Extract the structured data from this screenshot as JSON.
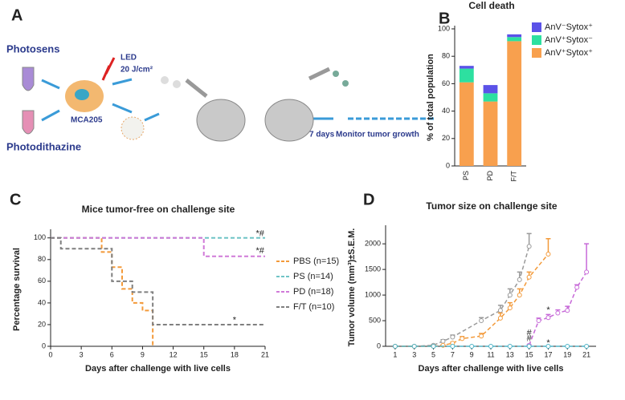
{
  "diagram": {
    "label": "A",
    "photosens": "Photosens",
    "photodithazine": "Photodithazine",
    "cell": "MCA205",
    "led": "LED",
    "dose": "20 J/cm²",
    "wait": "7 days",
    "monitor": "Monitor tumor growth"
  },
  "chart_data": [
    {
      "type": "bar",
      "label": "B",
      "title": "Cell death",
      "ylabel": "% of total population",
      "categories": [
        "PS",
        "PD",
        "F/T"
      ],
      "series": [
        {
          "name": "AnV⁺Sytox⁺",
          "color": "#f8a04e",
          "values": [
            61,
            47,
            91
          ]
        },
        {
          "name": "AnV⁺Sytox⁻",
          "color": "#2de0a0",
          "values": [
            10,
            6,
            3
          ]
        },
        {
          "name": "AnV⁻Sytox⁺",
          "color": "#5b52e8",
          "values": [
            2,
            6,
            2
          ]
        }
      ],
      "ylim": [
        0,
        100
      ],
      "yticks": [
        0,
        20,
        40,
        60,
        80,
        100
      ]
    },
    {
      "type": "step",
      "label": "C",
      "title": "Mice tumor-free on challenge site",
      "ylabel": "Percentage survival",
      "xlabel": "Days after challenge with live cells",
      "series": [
        {
          "name": "PBS (n=15)",
          "color": "#f39a3a",
          "x": [
            0,
            5,
            6,
            7,
            8,
            9,
            10
          ],
          "values": [
            100,
            87,
            73,
            53,
            40,
            33,
            0
          ]
        },
        {
          "name": "PS (n=14)",
          "color": "#6fc4c6",
          "x": [
            0,
            21
          ],
          "values": [
            100,
            100
          ]
        },
        {
          "name": "PD (n=18)",
          "color": "#d07ad8",
          "x": [
            0,
            15,
            21
          ],
          "values": [
            100,
            83,
            83
          ]
        },
        {
          "name": "F/T (n=10)",
          "color": "#7f7f7f",
          "x": [
            0,
            1,
            6,
            8,
            10,
            21
          ],
          "values": [
            100,
            90,
            60,
            50,
            20,
            20
          ]
        }
      ],
      "annotations": [
        {
          "text": "*#",
          "x": 20.5,
          "y": 104,
          "color": "#222"
        },
        {
          "text": "*#",
          "x": 20.5,
          "y": 88,
          "color": "#222"
        },
        {
          "text": "*",
          "x": 18,
          "y": 24,
          "color": "#222"
        }
      ],
      "xlim": [
        0,
        21
      ],
      "xticks": [
        0,
        3,
        6,
        9,
        12,
        15,
        18,
        21
      ],
      "ylim": [
        0,
        105
      ],
      "yticks": [
        0,
        20,
        40,
        60,
        80,
        100
      ]
    },
    {
      "type": "line",
      "label": "D",
      "title": "Tumor size on challenge site",
      "ylabel": "Tumor volume (mm³)±S.E.M.",
      "xlabel": "Days after challenge with live cells",
      "series": [
        {
          "color": "#9a9a9a",
          "x": [
            1,
            3,
            5,
            6,
            7,
            10,
            12,
            13,
            14,
            15
          ],
          "values": [
            0,
            0,
            20,
            100,
            180,
            500,
            700,
            1000,
            1300,
            1950
          ],
          "errors": [
            0,
            0,
            10,
            30,
            40,
            60,
            100,
            120,
            150,
            250
          ]
        },
        {
          "color": "#f39a3a",
          "x": [
            1,
            3,
            5,
            6,
            7,
            8,
            10,
            12,
            13,
            14,
            15,
            17
          ],
          "values": [
            0,
            0,
            0,
            20,
            60,
            150,
            200,
            550,
            750,
            1000,
            1350,
            1800
          ],
          "errors": [
            0,
            0,
            0,
            10,
            20,
            40,
            50,
            100,
            100,
            120,
            100,
            300
          ]
        },
        {
          "color": "#c76ad8",
          "x": [
            15,
            16,
            17,
            18,
            19,
            20,
            21
          ],
          "values": [
            20,
            500,
            560,
            650,
            700,
            1150,
            1450
          ],
          "errors": [
            10,
            50,
            60,
            60,
            80,
            50,
            550
          ]
        },
        {
          "color": "#4fb3c6",
          "x": [
            1,
            3,
            5,
            7,
            9,
            11,
            13,
            15,
            17,
            19,
            21
          ],
          "values": [
            0,
            0,
            0,
            0,
            0,
            0,
            0,
            0,
            0,
            0,
            0
          ],
          "errors": [
            0,
            0,
            0,
            0,
            0,
            0,
            0,
            0,
            0,
            0,
            0
          ]
        }
      ],
      "annotations": [
        {
          "text": "#",
          "x": 15,
          "y": 260,
          "color": "#8a2aa8"
        },
        {
          "text": "#",
          "x": 15,
          "y": 150,
          "color": "#2aa8a0"
        },
        {
          "text": "*",
          "x": 17,
          "y": 700,
          "color": "#8a2aa8"
        },
        {
          "text": "*",
          "x": 17,
          "y": 60,
          "color": "#2aa8a0"
        }
      ],
      "xlim": [
        0,
        22
      ],
      "xticks": [
        1,
        3,
        5,
        7,
        9,
        11,
        13,
        15,
        17,
        19,
        21
      ],
      "ylim": [
        0,
        2300
      ],
      "yticks": [
        0,
        500,
        1000,
        1500,
        2000
      ]
    }
  ]
}
